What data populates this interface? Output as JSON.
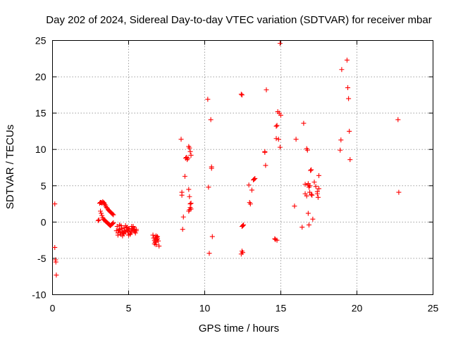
{
  "chart_data": {
    "type": "scatter",
    "title": "Day 202 of 2024, Sidereal Day-to-day VTEC variation (SDTVAR) for receiver mbar",
    "xlabel": "GPS time / hours",
    "ylabel": "SDTVAR / TECUs",
    "xlim": [
      0,
      25
    ],
    "ylim": [
      -10,
      25
    ],
    "xticks": [
      "0",
      "5",
      "10",
      "15",
      "20",
      "25"
    ],
    "yticks": [
      "-10",
      "-5",
      "0",
      "5",
      "10",
      "15",
      "20",
      "25"
    ],
    "grid": true,
    "marker": "plus",
    "color": "#ff0000",
    "series": [
      {
        "name": "SDTVAR",
        "x": [
          0.15,
          0.15,
          0.2,
          0.22,
          0.25,
          3.0,
          3.05,
          3.1,
          3.15,
          3.2,
          3.25,
          3.3,
          3.35,
          3.4,
          3.45,
          3.5,
          3.55,
          3.6,
          3.65,
          3.7,
          3.75,
          3.8,
          3.85,
          3.9,
          3.95,
          4.0,
          3.15,
          3.2,
          3.25,
          3.3,
          3.35,
          3.4,
          3.45,
          3.5,
          3.55,
          3.6,
          3.65,
          3.7,
          3.75,
          3.8,
          3.85,
          3.9,
          3.95,
          4.0,
          3.1,
          3.2,
          4.2,
          4.3,
          4.4,
          4.5,
          4.6,
          4.7,
          4.8,
          4.9,
          5.0,
          5.1,
          5.2,
          5.3,
          5.4,
          5.5,
          4.25,
          4.35,
          4.45,
          4.55,
          4.65,
          4.75,
          4.85,
          4.95,
          5.05,
          5.15,
          5.25,
          5.35,
          5.45,
          4.3,
          4.5,
          4.7,
          4.9,
          5.1,
          5.3,
          5.5,
          4.4,
          4.6,
          4.8,
          5.0,
          5.2,
          5.4,
          6.6,
          6.65,
          6.7,
          6.75,
          6.8,
          6.85,
          6.9,
          6.95,
          7.0,
          6.7,
          6.8,
          6.9,
          6.75,
          6.85,
          8.45,
          8.5,
          8.55,
          8.6,
          8.7,
          8.75,
          8.8,
          8.85,
          8.9,
          8.95,
          9.0,
          9.05,
          9.1,
          8.95,
          9.0,
          9.1,
          9.05,
          9.0,
          8.95,
          9.1,
          9.05,
          8.5,
          10.2,
          10.25,
          10.3,
          10.4,
          10.45,
          10.5,
          10.45,
          12.4,
          12.45,
          12.5,
          12.55,
          12.4,
          12.45,
          12.5,
          12.45,
          12.9,
          12.95,
          13.0,
          13.1,
          13.2,
          13.25,
          13.3,
          13.95,
          14.0,
          14.05,
          13.95,
          14.6,
          14.65,
          14.7,
          14.75,
          14.8,
          14.85,
          14.9,
          14.95,
          15.0,
          14.95,
          14.7,
          14.75,
          15.9,
          16.0,
          16.4,
          16.5,
          16.6,
          16.7,
          16.75,
          16.8,
          16.85,
          16.9,
          16.95,
          17.0,
          17.05,
          17.1,
          17.2,
          17.3,
          17.4,
          17.5,
          17.5,
          17.45,
          17.4,
          16.8,
          16.85,
          17.0,
          16.6,
          16.7,
          16.8,
          16.9,
          18.9,
          18.95,
          19.0,
          19.35,
          19.4,
          19.45,
          19.5,
          19.55,
          22.7,
          22.75
        ],
        "y": [
          2.5,
          -3.5,
          -5.2,
          -5.5,
          -7.3,
          0.2,
          0.3,
          2.6,
          2.7,
          2.7,
          2.6,
          2.8,
          2.7,
          2.6,
          2.4,
          2.2,
          2.0,
          1.9,
          1.7,
          1.6,
          1.5,
          1.4,
          1.3,
          1.2,
          1.1,
          1.0,
          1.5,
          1.2,
          0.9,
          0.6,
          0.4,
          0.3,
          0.2,
          0.1,
          0.0,
          -0.1,
          -0.2,
          -0.3,
          -0.4,
          -0.5,
          -0.4,
          -0.3,
          -0.2,
          -0.1,
          2.6,
          2.7,
          -1.2,
          -1.5,
          -1.0,
          -1.7,
          -1.3,
          -0.8,
          -1.4,
          -1.1,
          -0.9,
          -1.6,
          -1.2,
          -0.7,
          -1.3,
          -1.0,
          -0.6,
          -1.1,
          -1.4,
          -0.9,
          -1.5,
          -1.2,
          -0.8,
          -1.3,
          -1.0,
          -1.4,
          -0.9,
          -1.1,
          -1.5,
          -1.8,
          -0.5,
          -1.6,
          -0.7,
          -1.7,
          -0.6,
          -1.2,
          -0.4,
          -1.9,
          -0.5,
          -1.8,
          -0.6,
          -1.0,
          -1.8,
          -2.2,
          -2.5,
          -2.8,
          -3.1,
          -2.4,
          -2.0,
          -2.6,
          -3.3,
          -3.0,
          -1.9,
          -2.3,
          -2.7,
          -2.1,
          11.4,
          3.7,
          -1.0,
          0.7,
          6.3,
          8.8,
          8.9,
          8.6,
          8.8,
          10.4,
          10.2,
          9.7,
          9.2,
          4.5,
          3.5,
          2.6,
          2.0,
          1.7,
          1.5,
          1.8,
          2.5,
          4.1,
          16.9,
          4.8,
          -4.3,
          14.1,
          7.6,
          -2.0,
          7.4,
          17.6,
          17.5,
          -0.5,
          -0.4,
          -4.4,
          -4.0,
          -4.2,
          -0.6,
          5.1,
          2.7,
          2.5,
          4.4,
          5.8,
          5.9,
          6.0,
          9.7,
          7.8,
          18.2,
          9.6,
          -2.3,
          -2.4,
          13.2,
          13.3,
          15.2,
          11.4,
          15.0,
          10.3,
          14.7,
          24.6,
          11.5,
          -2.5,
          2.2,
          11.4,
          -0.7,
          13.6,
          5.2,
          10.1,
          9.9,
          1.2,
          -0.4,
          5.0,
          7.1,
          7.2,
          3.7,
          0.4,
          5.5,
          4.9,
          3.9,
          4.6,
          6.4,
          3.4,
          4.2,
          5.1,
          4.8,
          3.8,
          3.9,
          3.6,
          5.3,
          4.1,
          9.9,
          11.3,
          21.0,
          22.3,
          18.5,
          17.0,
          12.5,
          8.6,
          14.1,
          4.1
        ]
      }
    ]
  }
}
